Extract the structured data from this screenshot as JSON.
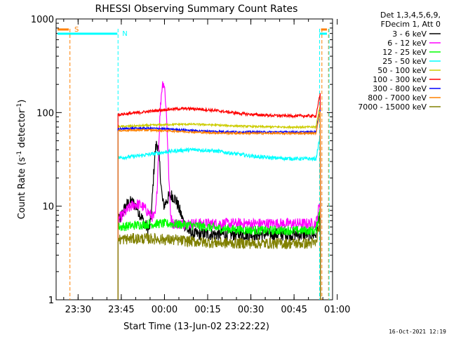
{
  "chart_data": {
    "type": "line",
    "title": "RHESSI Observing Summary Count Rates",
    "xlabel": "Start Time (13-Jun-02 23:22:22)",
    "ylabel_main": "Count Rate (s",
    "ylabel_sup1": "-1",
    "ylabel_mid": " detector",
    "ylabel_sup2": "-1",
    "ylabel_end": ")",
    "y_scale": "log",
    "ylim": [
      1,
      1000
    ],
    "x_range_minutes_from_start": [
      0,
      96
    ],
    "x_ticks": [
      {
        "label": "23:30",
        "min": 7.633
      },
      {
        "label": "23:45",
        "min": 22.633
      },
      {
        "label": "00:00",
        "min": 37.633
      },
      {
        "label": "00:15",
        "min": 52.633
      },
      {
        "label": "00:30",
        "min": 67.633
      },
      {
        "label": "00:45",
        "min": 82.633
      },
      {
        "label": "01:00",
        "min": 97.633
      }
    ],
    "y_ticks": [
      {
        "label": "1",
        "value": 1
      },
      {
        "label": "10",
        "value": 10
      },
      {
        "label": "100",
        "value": 100
      },
      {
        "label": "1000",
        "value": 1000
      }
    ],
    "legend_header": [
      "Det 1,3,4,5,6,9,",
      "FDecim 1, Att 0"
    ],
    "legend_placement": "right",
    "series": [
      {
        "name": "3 - 6 keV",
        "color": "#000000",
        "base": 5.0,
        "peak": 45,
        "peakAt": 35,
        "noise": 0.07
      },
      {
        "name": "6 - 12 keV",
        "color": "#ff00ff",
        "base": 6.5,
        "peak": 210,
        "peakAt": 37.2,
        "noise": 0.06
      },
      {
        "name": "12 - 25 keV",
        "color": "#00ff00",
        "base": 5.5,
        "peak": 6.5,
        "peakAt": 37,
        "noise": 0.05
      },
      {
        "name": "25 - 50 keV",
        "color": "#00ffff",
        "base": 32,
        "peak": 40,
        "peakAt": 48,
        "noise": 0.02
      },
      {
        "name": "50 - 100 keV",
        "color": "#cccc00",
        "base": 70,
        "peak": 75,
        "peakAt": 45,
        "noise": 0.01
      },
      {
        "name": "100 - 300 keV",
        "color": "#ff0000",
        "base": 92,
        "peak": 110,
        "peakAt": 45,
        "noise": 0.015
      },
      {
        "name": "300 - 800 keV",
        "color": "#0000ff",
        "base": 62,
        "peak": 68,
        "peakAt": 30,
        "noise": 0.01
      },
      {
        "name": "800 - 7000 keV",
        "color": "#ff8000",
        "base": 60,
        "peak": 65,
        "peakAt": 30,
        "noise": 0.01
      },
      {
        "name": "7000 - 15000 keV",
        "color": "#808000",
        "base": 4.0,
        "peak": 4.5,
        "peakAt": 30,
        "noise": 0.06
      }
    ],
    "flags": [
      {
        "label": "S",
        "color": "#ff8000"
      },
      {
        "label": "N",
        "color": "#00ffff"
      }
    ],
    "data_window_minutes": [
      21.5,
      91.8
    ],
    "timestamp": "16-Oct-2021 12:19"
  }
}
